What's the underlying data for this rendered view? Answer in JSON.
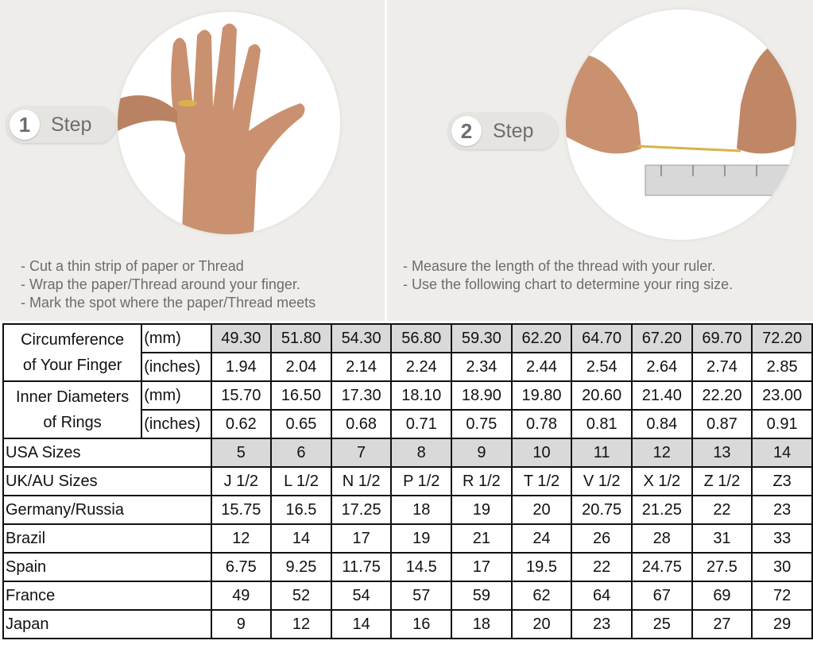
{
  "step1": {
    "number": "1",
    "label": "Step",
    "bullets": [
      "- Cut a thin strip of paper or Thread",
      "- Wrap the paper/Thread around your finger.",
      "- Mark the spot where the paper/Thread meets"
    ]
  },
  "step2": {
    "number": "2",
    "label": "Step",
    "bullets": [
      "- Measure the length of the thread with your ruler.",
      "- Use the following chart to determine your ring size."
    ]
  },
  "colors": {
    "background": "#efedea",
    "highlight": "#d9d9d9",
    "border": "#111111"
  },
  "chart_data": {
    "type": "table",
    "groups": [
      {
        "label": [
          "Circumference",
          "of Your Finger"
        ],
        "rows": [
          {
            "unit": "(mm)",
            "shaded": true,
            "values": [
              "49.30",
              "51.80",
              "54.30",
              "56.80",
              "59.30",
              "62.20",
              "64.70",
              "67.20",
              "69.70",
              "72.20"
            ]
          },
          {
            "unit": "(inches)",
            "shaded": false,
            "values": [
              "1.94",
              "2.04",
              "2.14",
              "2.24",
              "2.34",
              "2.44",
              "2.54",
              "2.64",
              "2.74",
              "2.85"
            ]
          }
        ]
      },
      {
        "label": [
          "Inner Diameters",
          "of Rings"
        ],
        "rows": [
          {
            "unit": "(mm)",
            "shaded": false,
            "values": [
              "15.70",
              "16.50",
              "17.30",
              "18.10",
              "18.90",
              "19.80",
              "20.60",
              "21.40",
              "22.20",
              "23.00"
            ]
          },
          {
            "unit": "(inches)",
            "shaded": false,
            "values": [
              "0.62",
              "0.65",
              "0.68",
              "0.71",
              "0.75",
              "0.78",
              "0.81",
              "0.84",
              "0.87",
              "0.91"
            ]
          }
        ]
      }
    ],
    "rows": [
      {
        "label": "USA Sizes",
        "shaded": true,
        "values": [
          "5",
          "6",
          "7",
          "8",
          "9",
          "10",
          "11",
          "12",
          "13",
          "14"
        ]
      },
      {
        "label": "UK/AU Sizes",
        "shaded": false,
        "values": [
          "J 1/2",
          "L 1/2",
          "N 1/2",
          "P 1/2",
          "R 1/2",
          "T 1/2",
          "V 1/2",
          "X 1/2",
          "Z 1/2",
          "Z3"
        ]
      },
      {
        "label": "Germany/Russia",
        "shaded": false,
        "values": [
          "15.75",
          "16.5",
          "17.25",
          "18",
          "19",
          "20",
          "20.75",
          "21.25",
          "22",
          "23"
        ]
      },
      {
        "label": "Brazil",
        "shaded": false,
        "values": [
          "12",
          "14",
          "17",
          "19",
          "21",
          "24",
          "26",
          "28",
          "31",
          "33"
        ]
      },
      {
        "label": "Spain",
        "shaded": false,
        "values": [
          "6.75",
          "9.25",
          "11.75",
          "14.5",
          "17",
          "19.5",
          "22",
          "24.75",
          "27.5",
          "30"
        ]
      },
      {
        "label": "France",
        "shaded": false,
        "values": [
          "49",
          "52",
          "54",
          "57",
          "59",
          "62",
          "64",
          "67",
          "69",
          "72"
        ]
      },
      {
        "label": "Japan",
        "shaded": false,
        "values": [
          "9",
          "12",
          "14",
          "16",
          "18",
          "20",
          "23",
          "25",
          "27",
          "29"
        ]
      }
    ]
  }
}
